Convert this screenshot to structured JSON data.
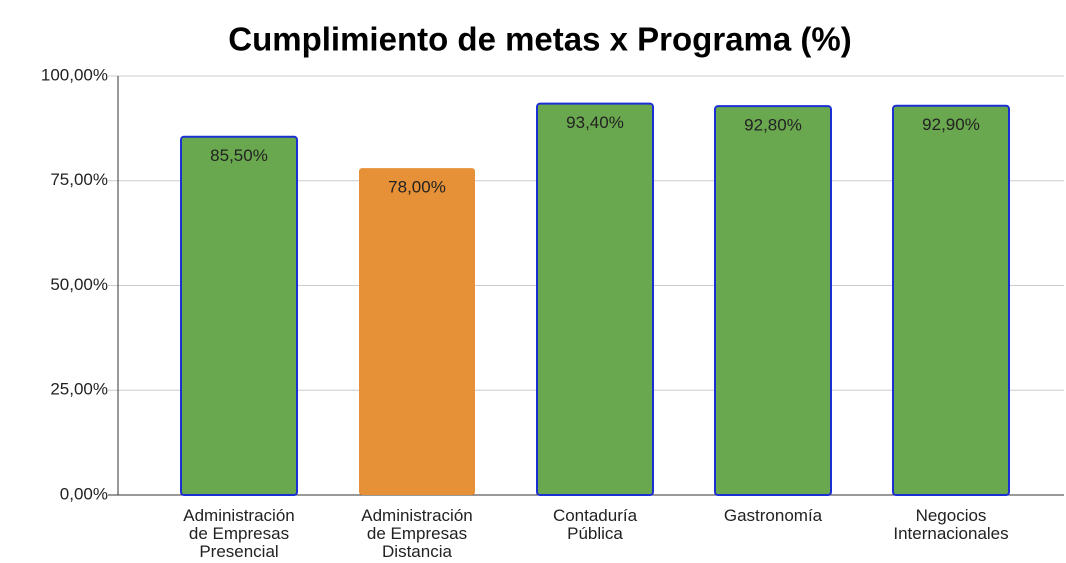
{
  "chart_data": {
    "type": "bar",
    "title": "Cumplimiento de metas x Programa (%)",
    "categories": [
      "Administración\nde Empresas\nPresencial",
      "Administración\nde Empresas\nDistancia",
      "Contaduría\nPública",
      "Gastronomía",
      "Negocios\nInternacionales"
    ],
    "values": [
      85.5,
      78,
      93.4,
      92.8,
      92.9
    ],
    "value_labels": [
      "85,50%",
      "78,00%",
      "93,40%",
      "92,80%",
      "92,90%"
    ],
    "colors": [
      "#6aa84f",
      "#e69138",
      "#6aa84f",
      "#6aa84f",
      "#6aa84f"
    ],
    "edgecolors": [
      "#1c2fd4",
      null,
      "#1c2fd4",
      "#1c2fd4",
      "#1c2fd4"
    ],
    "ylim": [
      0,
      100
    ],
    "yticks": [
      {
        "value": 0,
        "label": "0,00%"
      },
      {
        "value": 25,
        "label": "25,00%"
      },
      {
        "value": 50,
        "label": "50,00%"
      },
      {
        "value": 75,
        "label": "75,00%"
      },
      {
        "value": 100,
        "label": "100,00%"
      }
    ],
    "grid": true
  }
}
